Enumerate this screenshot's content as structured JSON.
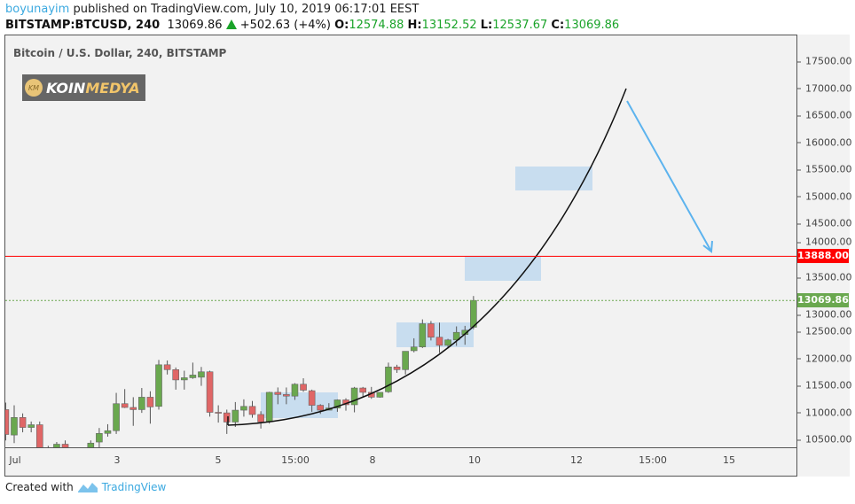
{
  "header": {
    "user": "boyunayim",
    "published": "published on TradingView.com, July 10, 2019 06:17:01 EEST",
    "symbol": "BITSTAMP:BTCUSD, 240",
    "last": "13069.86",
    "change": "+502.63 (+4%)",
    "o_label": "O:",
    "o": "12574.88",
    "h_label": "H:",
    "h": "13152.52",
    "l_label": "L:",
    "l": "12537.67",
    "c_label": "C:",
    "c": "13069.86"
  },
  "chart": {
    "title": "Bitcoin / U.S. Dollar, 240, BITSTAMP",
    "logo": {
      "mark": "KM",
      "text1": "KOIN",
      "text2": "MEDYA"
    },
    "price_ticks": [
      "17500.00",
      "17000.00",
      "16500.00",
      "16000.00",
      "15500.00",
      "15000.00",
      "14500.00",
      "14000.00",
      "13500.00",
      "13000.00",
      "12500.00",
      "12000.00",
      "11500.00",
      "11000.00",
      "10500.00"
    ],
    "price_values": [
      17500,
      17000,
      16500,
      16000,
      15500,
      15000,
      14500,
      14000,
      13500,
      13000,
      12500,
      12000,
      11500,
      11000,
      10500
    ],
    "time_ticks": [
      "Jul",
      "3",
      "5",
      "15:00",
      "8",
      "10",
      "12",
      "15:00",
      "15"
    ],
    "red_line_label": "13888.00",
    "red_line_value": 13888,
    "last_label": "13069.86",
    "last_value": 13069.86,
    "colors": {
      "up": "#6aa84f",
      "down": "#e06666",
      "line": "#ff0000",
      "last": "#6aa84f",
      "box": "#b9d5ee",
      "arrow": "#5cb3ee"
    },
    "candles": [
      [
        11050,
        11180,
        10480,
        10590
      ],
      [
        10580,
        11130,
        10430,
        10905
      ],
      [
        10905,
        10980,
        10630,
        10720
      ],
      [
        10720,
        10830,
        10630,
        10770
      ],
      [
        10770,
        10830,
        10030,
        10130
      ],
      [
        10230,
        10380,
        10130,
        10280
      ],
      [
        10130,
        10450,
        10030,
        10410
      ],
      [
        10410,
        10480,
        10030,
        10130
      ],
      [
        10130,
        10230,
        9930,
        10080
      ],
      [
        10080,
        10200,
        9950,
        10130
      ],
      [
        10130,
        10480,
        10030,
        10430
      ],
      [
        10450,
        10710,
        10330,
        10610
      ],
      [
        10610,
        10780,
        10550,
        10660
      ],
      [
        10660,
        11360,
        10600,
        11160
      ],
      [
        11160,
        11430,
        11080,
        11090
      ],
      [
        11090,
        11280,
        10750,
        11050
      ],
      [
        11050,
        11450,
        10990,
        11280
      ],
      [
        11280,
        11390,
        10790,
        11100
      ],
      [
        11110,
        11970,
        11050,
        11880
      ],
      [
        11880,
        11960,
        11700,
        11790
      ],
      [
        11790,
        11830,
        11420,
        11600
      ],
      [
        11600,
        11770,
        11420,
        11640
      ],
      [
        11640,
        11920,
        11620,
        11690
      ],
      [
        11650,
        11840,
        11490,
        11750
      ],
      [
        11750,
        11770,
        10920,
        11000
      ],
      [
        11000,
        11130,
        10810,
        10990
      ],
      [
        10990,
        11050,
        10600,
        10820
      ],
      [
        10820,
        11190,
        10730,
        11040
      ],
      [
        11040,
        11240,
        10920,
        11110
      ],
      [
        11110,
        11210,
        10900,
        10960
      ],
      [
        10960,
        11020,
        10700,
        10820
      ],
      [
        10830,
        11380,
        10790,
        11370
      ],
      [
        11370,
        11460,
        11150,
        11330
      ],
      [
        11330,
        11460,
        11150,
        11300
      ],
      [
        11300,
        11540,
        11230,
        11520
      ],
      [
        11520,
        11630,
        11380,
        11410
      ],
      [
        11400,
        11420,
        11010,
        11130
      ],
      [
        11130,
        11150,
        10970,
        11040
      ],
      [
        11040,
        11170,
        11040,
        11080
      ],
      [
        11080,
        11240,
        11010,
        11230
      ],
      [
        11230,
        11260,
        11030,
        11140
      ],
      [
        11140,
        11470,
        11000,
        11450
      ],
      [
        11450,
        11470,
        11270,
        11370
      ],
      [
        11370,
        11470,
        11250,
        11280
      ],
      [
        11280,
        11370,
        11270,
        11370
      ],
      [
        11380,
        11920,
        11360,
        11840
      ],
      [
        11840,
        11880,
        11730,
        11790
      ],
      [
        11790,
        12130,
        11700,
        12130
      ],
      [
        12140,
        12370,
        12110,
        12210
      ],
      [
        12210,
        12720,
        12190,
        12640
      ],
      [
        12640,
        12690,
        12330,
        12390
      ],
      [
        12390,
        12660,
        12100,
        12240
      ],
      [
        12240,
        12360,
        12180,
        12340
      ],
      [
        12340,
        12590,
        12230,
        12480
      ],
      [
        12440,
        12600,
        12250,
        12520
      ],
      [
        12574.88,
        13152.52,
        12537.67,
        13069.86
      ]
    ]
  },
  "footer": {
    "created": "Created with",
    "brand": "TradingView"
  }
}
